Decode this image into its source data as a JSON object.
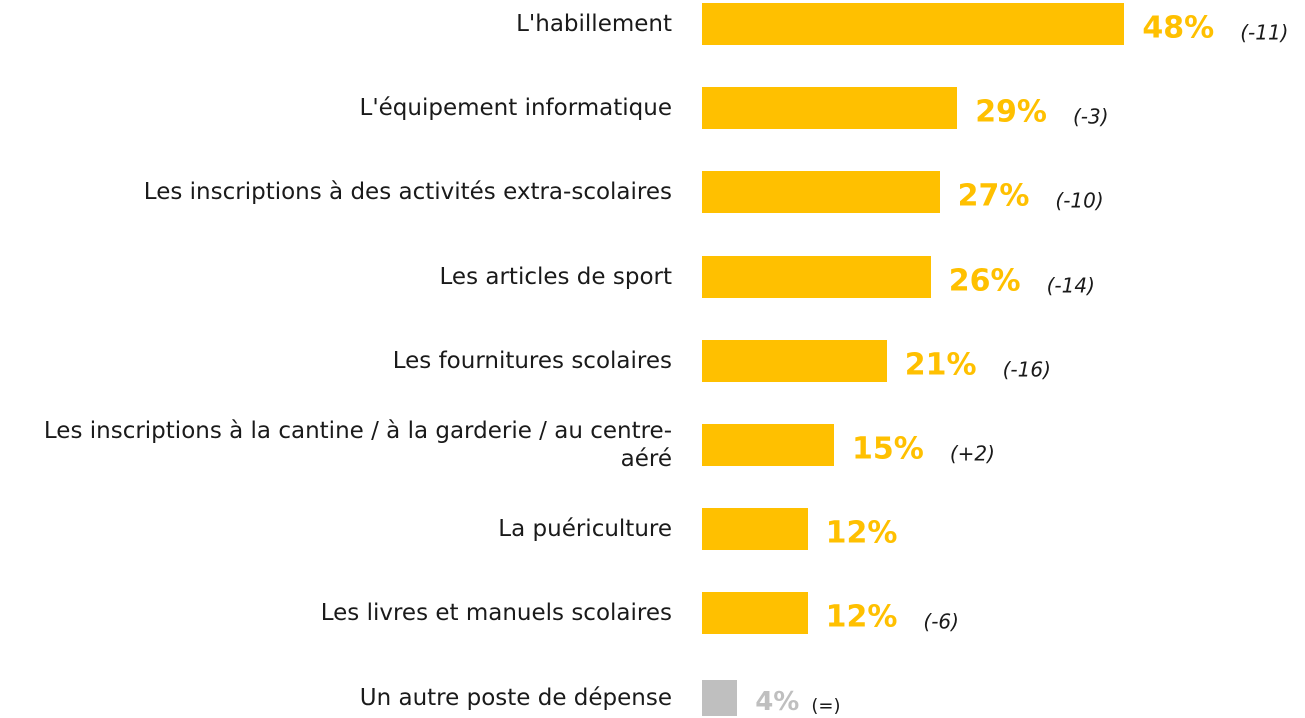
{
  "chart_data": {
    "type": "bar",
    "orientation": "horizontal",
    "categories": [
      "L'habillement",
      "L'équipement informatique",
      "Les inscriptions à des activités extra-scolaires",
      "Les articles de sport",
      "Les fournitures scolaires",
      "Les inscriptions à la cantine / à la garderie / au centre-aéré",
      "La puériculture",
      "Les livres et manuels scolaires",
      "Un autre poste de dépense"
    ],
    "values": [
      48,
      29,
      27,
      26,
      21,
      15,
      12,
      12,
      4
    ],
    "value_labels": [
      "48%",
      "29%",
      "27%",
      "26%",
      "21%",
      "15%",
      "12%",
      "12%",
      "4%"
    ],
    "annotations": [
      "(-11)",
      "(-3)",
      "(-10)",
      "(-14)",
      "(-16)",
      "(+2)",
      null,
      "(-6)",
      "(=)"
    ],
    "colors": [
      "#FFC000",
      "#FFC000",
      "#FFC000",
      "#FFC000",
      "#FFC000",
      "#FFC000",
      "#FFC000",
      "#FFC000",
      "#BFBFBF"
    ]
  }
}
